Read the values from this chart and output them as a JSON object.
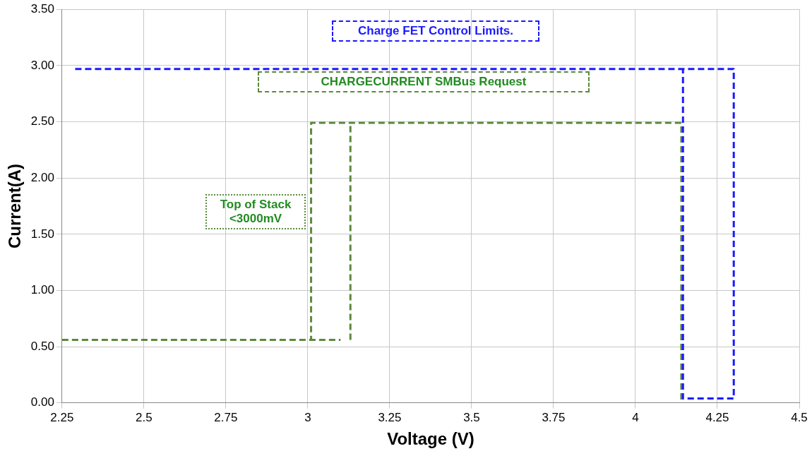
{
  "chart_data": {
    "type": "line",
    "xlabel": "Voltage (V)",
    "ylabel": "Current(A)",
    "xlim": [
      2.25,
      4.5
    ],
    "xticks": [
      2.25,
      2.5,
      2.75,
      3,
      3.25,
      3.5,
      3.75,
      4,
      4.25,
      4.5
    ],
    "ylim": [
      0,
      3.5
    ],
    "yticks": [
      {
        "value": 0,
        "label": "0.00"
      },
      {
        "value": 0.5,
        "label": "0.50"
      },
      {
        "value": 1,
        "label": "1.00"
      },
      {
        "value": 1.5,
        "label": "1.50"
      },
      {
        "value": 2,
        "label": "2.00"
      },
      {
        "value": 2.5,
        "label": "2.50"
      },
      {
        "value": 3,
        "label": "3.00"
      },
      {
        "value": 3.5,
        "label": "3.50"
      }
    ],
    "grid": true,
    "legend": false,
    "marker": "none",
    "line_style": "dashed",
    "series": [
      {
        "color": "#1a1aff",
        "x": [
          2.29,
          4.3,
          4.3,
          4.145,
          4.145
        ],
        "values": [
          2.97,
          2.97,
          0.04,
          0.04,
          2.96
        ]
      },
      {
        "color": "#5b8a3c",
        "x": [
          4.14,
          4.14,
          3.01,
          3.01
        ],
        "values": [
          0.03,
          2.49,
          2.49,
          0.56
        ]
      },
      {
        "color": "#5b8a3c",
        "x": [
          2.25,
          3.1
        ],
        "values": [
          0.56,
          0.56
        ]
      },
      {
        "color": "#5b8a3c",
        "x": [
          3.13,
          3.13
        ],
        "values": [
          0.56,
          2.49
        ]
      }
    ],
    "annotations": [
      "Charge FET Control Limits.",
      "CHARGECURRENT SMBus Request",
      "Top of Stack <3000mV"
    ]
  }
}
